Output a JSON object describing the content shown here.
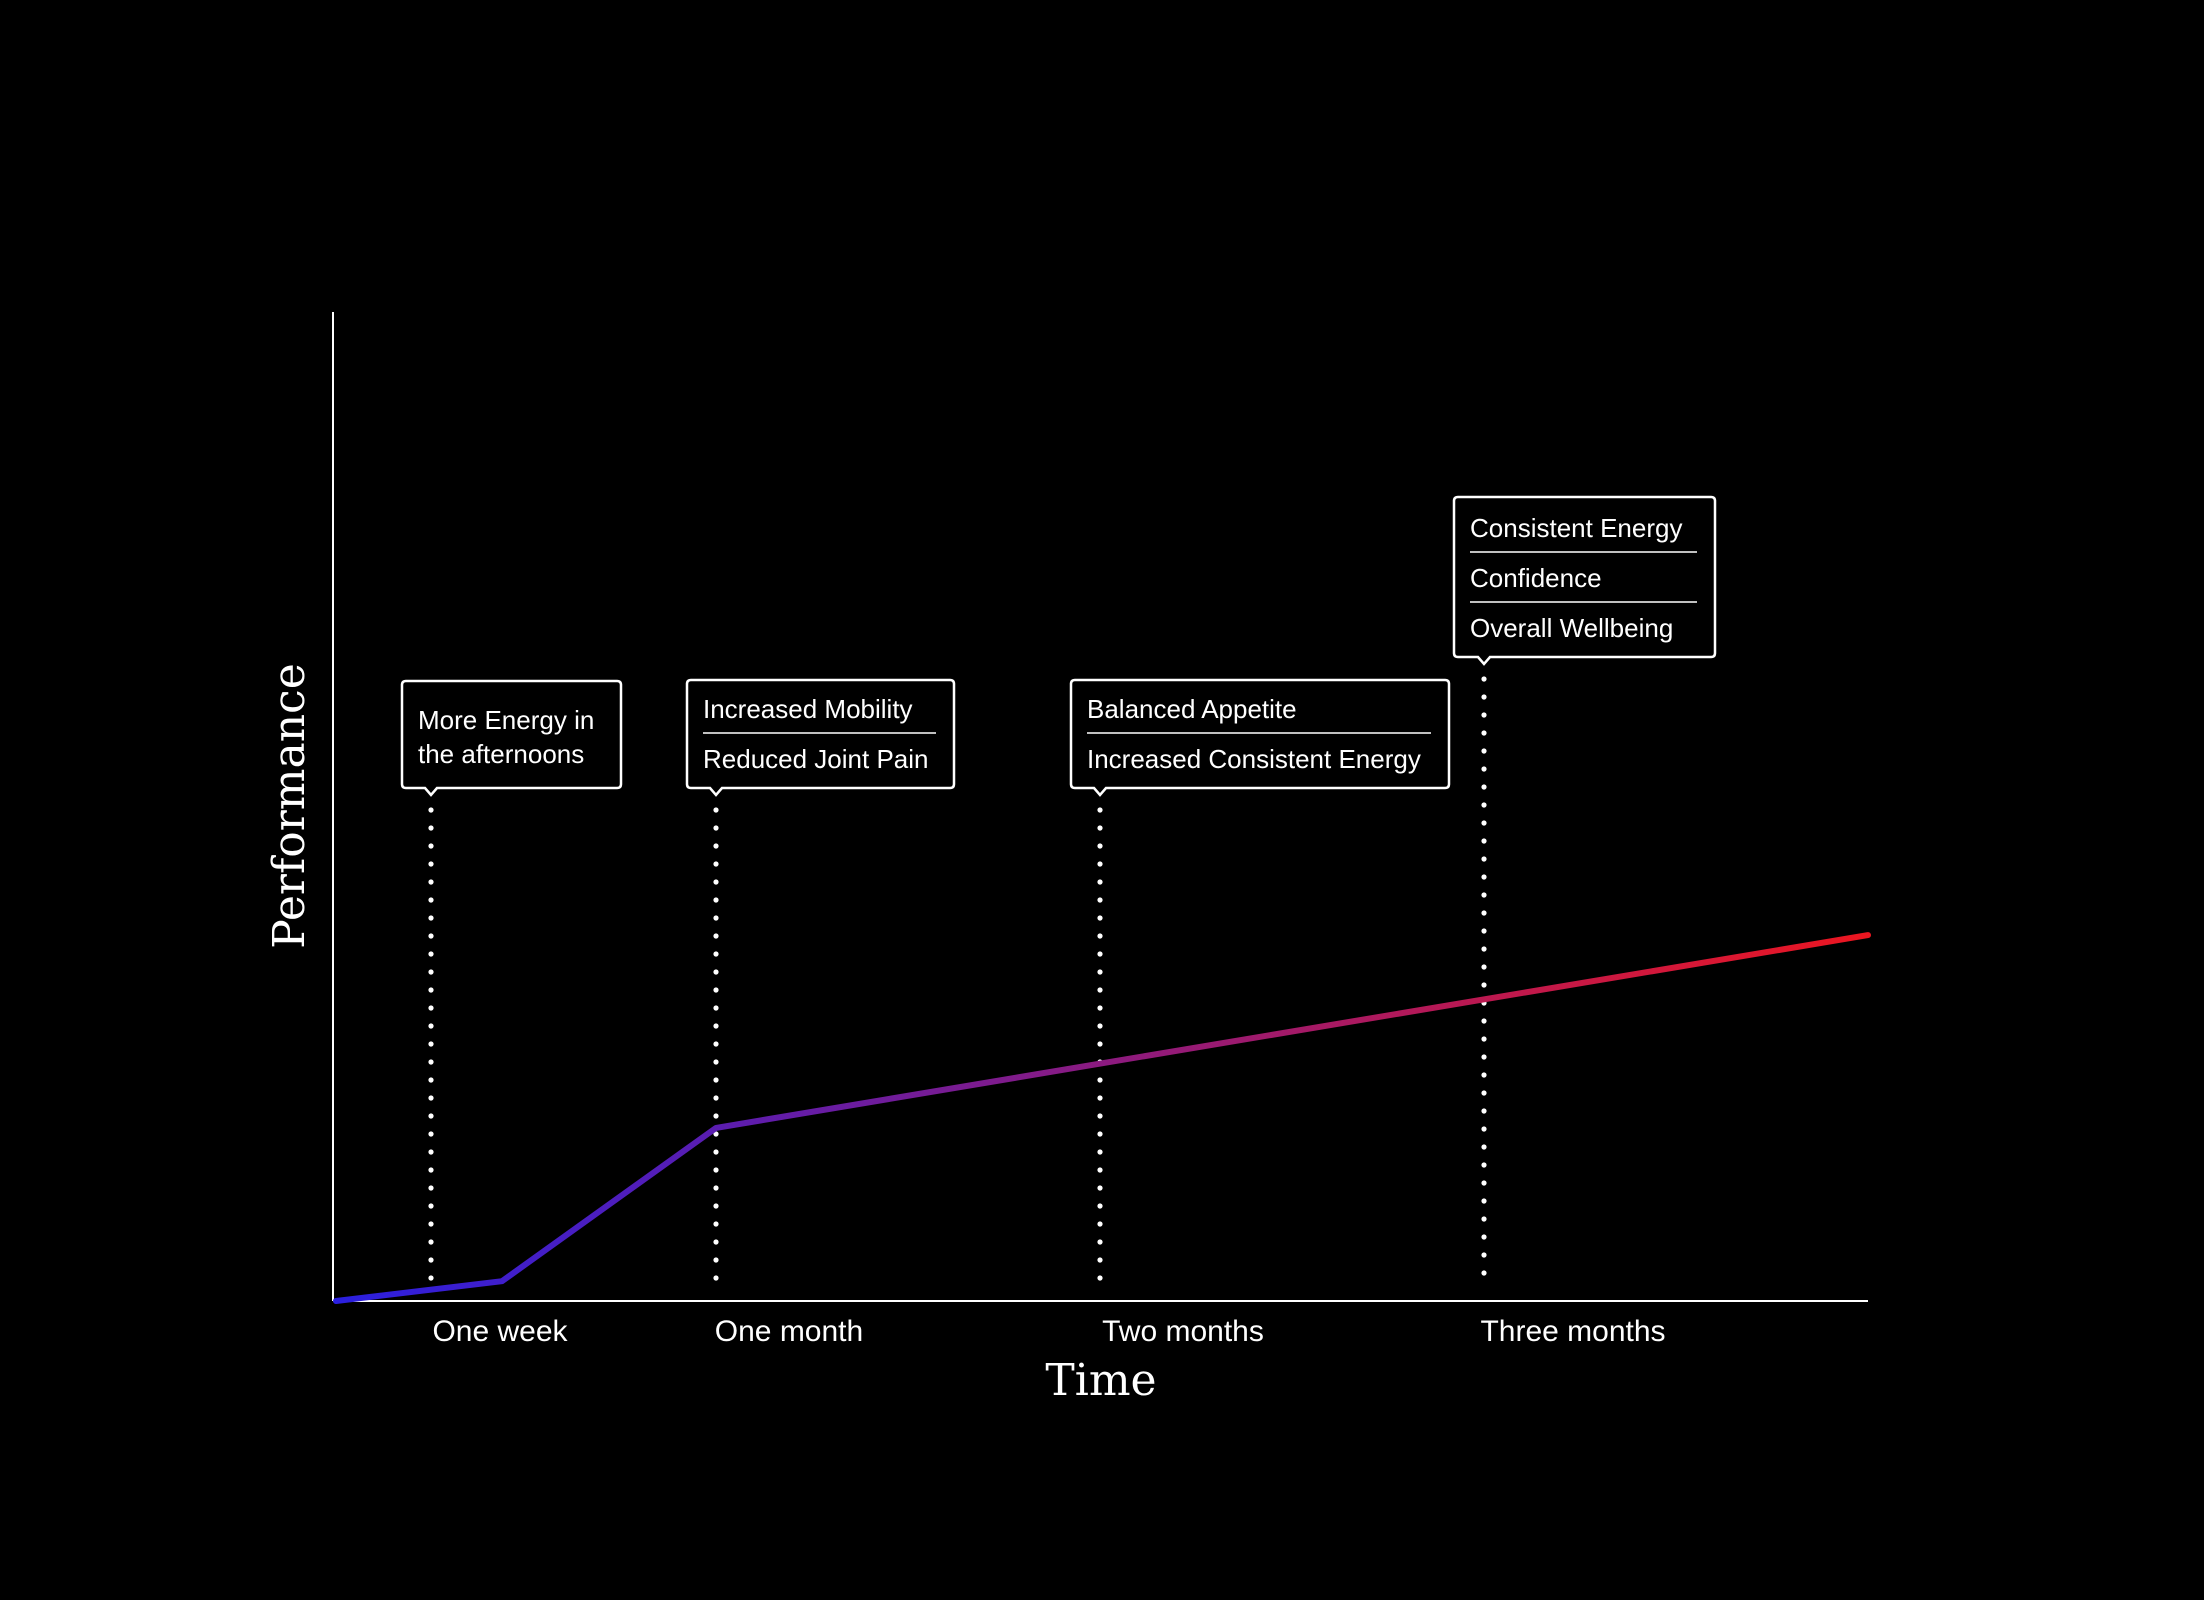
{
  "chart_data": {
    "type": "line",
    "title": "",
    "xlabel": "Time",
    "ylabel": "Performance",
    "categories": [
      "One week",
      "One month",
      "Two months",
      "Three months"
    ],
    "series": [
      {
        "values": [
          {
            "x": "Start",
            "y": 0
          },
          {
            "x": "One week",
            "y": 2
          },
          {
            "x": "One month",
            "y": 17.5
          },
          {
            "x": "Three months end",
            "y": 37
          }
        ]
      }
    ],
    "annotations": [
      {
        "category": "One week",
        "lines": [
          "More Energy in the afternoons"
        ]
      },
      {
        "category": "One month",
        "lines": [
          "Increased Mobility",
          "Reduced Joint Pain"
        ]
      },
      {
        "category": "Two months",
        "lines": [
          "Balanced Appetite",
          "Increased Consistent Energy"
        ]
      },
      {
        "category": "Three months",
        "lines": [
          "Consistent Energy",
          "Confidence",
          "Overall Wellbeing"
        ]
      }
    ],
    "ylim": [
      0,
      100
    ],
    "grid": false,
    "legend": "none",
    "colors": {
      "background": "#000000",
      "axis": "#ffffff",
      "text": "#ffffff",
      "line_start": "#2a1fe0",
      "line_end": "#ec1620"
    }
  }
}
